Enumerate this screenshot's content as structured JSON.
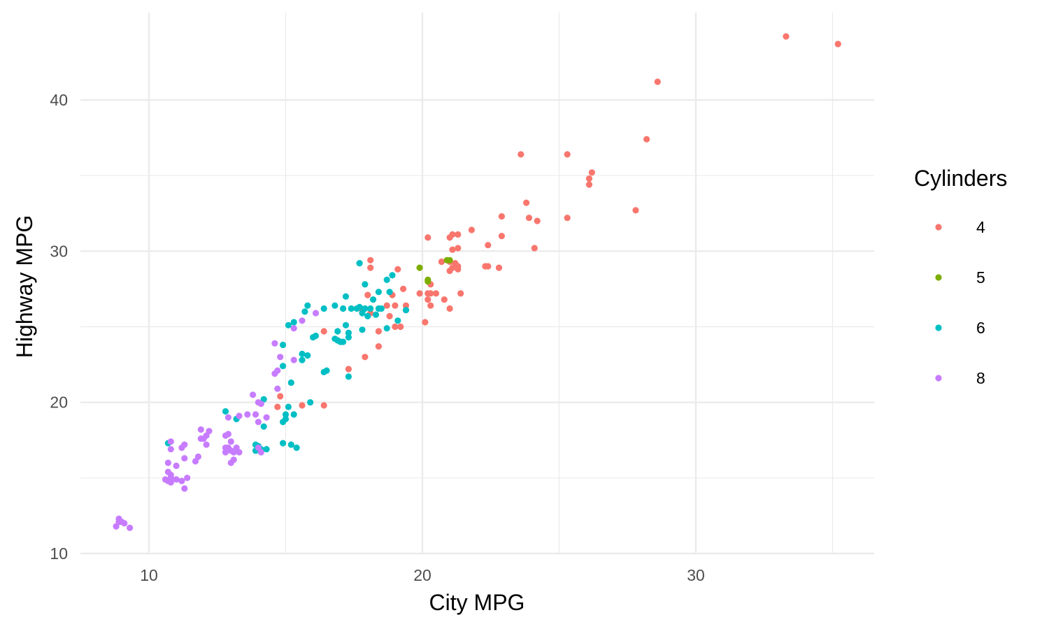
{
  "chart_data": {
    "type": "scatter",
    "xlabel": "City MPG",
    "ylabel": "Highway MPG",
    "xlim": [
      7.5,
      36.5
    ],
    "ylim": [
      10,
      45
    ],
    "xticks": [
      10,
      20,
      30
    ],
    "yticks": [
      10,
      20,
      30,
      40
    ],
    "grid": true,
    "legend": {
      "title": "Cylinders",
      "position": "right"
    },
    "series": [
      {
        "name": "4",
        "color": "#F8766D",
        "points": [
          [
            33.3,
            44.2
          ],
          [
            35.2,
            43.7
          ],
          [
            28.6,
            41.2
          ],
          [
            28.2,
            37.4
          ],
          [
            23.6,
            36.4
          ],
          [
            25.3,
            36.4
          ],
          [
            26.2,
            35.2
          ],
          [
            26.1,
            34.8
          ],
          [
            26.1,
            34.4
          ],
          [
            23.8,
            33.2
          ],
          [
            27.8,
            32.7
          ],
          [
            23.9,
            32.2
          ],
          [
            24.2,
            32.0
          ],
          [
            25.3,
            32.2
          ],
          [
            22.9,
            32.3
          ],
          [
            21.8,
            31.4
          ],
          [
            22.9,
            31.0
          ],
          [
            21.3,
            31.1
          ],
          [
            21.1,
            31.1
          ],
          [
            20.2,
            30.9
          ],
          [
            21.0,
            30.9
          ],
          [
            22.4,
            30.4
          ],
          [
            24.1,
            30.2
          ],
          [
            21.3,
            30.2
          ],
          [
            21.1,
            30.1
          ],
          [
            18.1,
            29.4
          ],
          [
            20.7,
            29.3
          ],
          [
            21.0,
            29.3
          ],
          [
            21.3,
            29.0
          ],
          [
            21.2,
            29.2
          ],
          [
            22.4,
            29.0
          ],
          [
            22.3,
            29.0
          ],
          [
            22.8,
            28.9
          ],
          [
            21.0,
            28.7
          ],
          [
            18.1,
            28.9
          ],
          [
            19.1,
            28.8
          ],
          [
            21.3,
            28.8
          ],
          [
            21.1,
            28.9
          ],
          [
            20.3,
            27.8
          ],
          [
            20.3,
            27.2
          ],
          [
            19.9,
            27.2
          ],
          [
            20.2,
            27.2
          ],
          [
            20.5,
            27.2
          ],
          [
            19.3,
            27.5
          ],
          [
            21.4,
            27.2
          ],
          [
            18.0,
            27.1
          ],
          [
            18.9,
            27.1
          ],
          [
            20.2,
            26.8
          ],
          [
            20.3,
            26.4
          ],
          [
            20.8,
            26.8
          ],
          [
            21.0,
            26.2
          ],
          [
            18.7,
            26.4
          ],
          [
            19.0,
            26.4
          ],
          [
            19.4,
            26.4
          ],
          [
            19.4,
            26.1
          ],
          [
            18.1,
            25.9
          ],
          [
            17.8,
            26.0
          ],
          [
            18.8,
            25.7
          ],
          [
            19.2,
            25.0
          ],
          [
            19.0,
            25.0
          ],
          [
            20.1,
            25.3
          ],
          [
            16.4,
            24.7
          ],
          [
            18.4,
            24.7
          ],
          [
            18.4,
            23.7
          ],
          [
            17.9,
            23.0
          ],
          [
            17.3,
            22.2
          ],
          [
            14.8,
            20.4
          ],
          [
            14.7,
            19.7
          ],
          [
            15.6,
            19.8
          ],
          [
            16.4,
            19.8
          ]
        ]
      },
      {
        "name": "5",
        "color": "#7CAE00",
        "points": [
          [
            19.9,
            28.9
          ],
          [
            20.9,
            29.4
          ],
          [
            21.0,
            29.4
          ],
          [
            20.2,
            28.1
          ],
          [
            20.2,
            28.0
          ]
        ]
      },
      {
        "name": "6",
        "color": "#00BFC4",
        "points": [
          [
            17.7,
            29.2
          ],
          [
            18.9,
            28.4
          ],
          [
            18.7,
            28.1
          ],
          [
            17.9,
            27.8
          ],
          [
            18.8,
            27.3
          ],
          [
            18.4,
            27.3
          ],
          [
            17.2,
            27.0
          ],
          [
            18.2,
            26.8
          ],
          [
            16.8,
            26.4
          ],
          [
            15.8,
            26.4
          ],
          [
            15.7,
            26.0
          ],
          [
            16.4,
            26.2
          ],
          [
            17.1,
            26.2
          ],
          [
            17.4,
            26.2
          ],
          [
            17.7,
            26.3
          ],
          [
            17.6,
            26.2
          ],
          [
            17.9,
            26.2
          ],
          [
            18.1,
            26.2
          ],
          [
            18.4,
            26.2
          ],
          [
            18.5,
            26.2
          ],
          [
            17.8,
            25.9
          ],
          [
            18.0,
            25.7
          ],
          [
            18.3,
            25.8
          ],
          [
            19.4,
            26.1
          ],
          [
            15.3,
            25.3
          ],
          [
            15.1,
            25.1
          ],
          [
            19.1,
            25.4
          ],
          [
            17.2,
            25.1
          ],
          [
            16.9,
            24.7
          ],
          [
            17.3,
            24.6
          ],
          [
            17.8,
            24.8
          ],
          [
            18.7,
            24.9
          ],
          [
            16.1,
            24.4
          ],
          [
            16.0,
            24.3
          ],
          [
            16.8,
            24.2
          ],
          [
            16.9,
            24.1
          ],
          [
            17.0,
            24.0
          ],
          [
            17.1,
            24.0
          ],
          [
            17.3,
            24.3
          ],
          [
            14.9,
            23.8
          ],
          [
            15.6,
            23.2
          ],
          [
            15.8,
            23.1
          ],
          [
            15.6,
            22.8
          ],
          [
            14.9,
            22.4
          ],
          [
            16.5,
            22.1
          ],
          [
            16.4,
            22.0
          ],
          [
            17.3,
            21.7
          ],
          [
            15.2,
            21.3
          ],
          [
            15.9,
            20.0
          ],
          [
            12.8,
            19.4
          ],
          [
            14.2,
            20.2
          ],
          [
            15.1,
            19.7
          ],
          [
            15.0,
            19.2
          ],
          [
            15.3,
            19.2
          ],
          [
            15.0,
            18.9
          ],
          [
            14.9,
            18.7
          ],
          [
            13.2,
            18.9
          ],
          [
            14.2,
            18.4
          ],
          [
            13.9,
            17.2
          ],
          [
            14.0,
            17.1
          ],
          [
            14.9,
            17.3
          ],
          [
            15.2,
            17.2
          ],
          [
            15.4,
            17.0
          ],
          [
            10.7,
            17.3
          ],
          [
            14.1,
            16.9
          ],
          [
            14.3,
            16.9
          ],
          [
            13.9,
            16.8
          ]
        ]
      },
      {
        "name": "8",
        "color": "#C77CFF",
        "points": [
          [
            16.1,
            25.9
          ],
          [
            15.6,
            25.4
          ],
          [
            15.3,
            24.9
          ],
          [
            14.6,
            23.9
          ],
          [
            14.8,
            23.0
          ],
          [
            15.3,
            22.8
          ],
          [
            14.7,
            22.1
          ],
          [
            14.6,
            21.9
          ],
          [
            14.7,
            20.9
          ],
          [
            13.8,
            20.5
          ],
          [
            14.0,
            20.0
          ],
          [
            14.1,
            19.9
          ],
          [
            13.6,
            19.2
          ],
          [
            13.3,
            19.1
          ],
          [
            13.9,
            19.2
          ],
          [
            14.3,
            19.0
          ],
          [
            12.9,
            19.0
          ],
          [
            14.0,
            18.7
          ],
          [
            11.9,
            18.2
          ],
          [
            12.2,
            18.1
          ],
          [
            12.1,
            17.8
          ],
          [
            11.9,
            17.6
          ],
          [
            12.0,
            17.6
          ],
          [
            12.8,
            17.8
          ],
          [
            12.9,
            17.9
          ],
          [
            10.8,
            17.4
          ],
          [
            13.0,
            17.4
          ],
          [
            11.3,
            17.2
          ],
          [
            11.2,
            17.0
          ],
          [
            12.1,
            17.2
          ],
          [
            12.8,
            17.0
          ],
          [
            12.9,
            17.0
          ],
          [
            13.2,
            17.0
          ],
          [
            14.0,
            17.0
          ],
          [
            13.0,
            16.8
          ],
          [
            13.1,
            16.7
          ],
          [
            13.3,
            16.7
          ],
          [
            12.8,
            16.7
          ],
          [
            14.1,
            16.7
          ],
          [
            10.8,
            16.9
          ],
          [
            11.8,
            16.4
          ],
          [
            13.1,
            16.2
          ],
          [
            11.3,
            16.3
          ],
          [
            13.0,
            16.0
          ],
          [
            10.7,
            16.0
          ],
          [
            11.7,
            16.1
          ],
          [
            11.0,
            15.8
          ],
          [
            10.7,
            15.4
          ],
          [
            10.8,
            15.2
          ],
          [
            10.8,
            15.0
          ],
          [
            11.4,
            15.0
          ],
          [
            11.0,
            14.9
          ],
          [
            10.7,
            14.8
          ],
          [
            10.8,
            14.7
          ],
          [
            11.2,
            14.8
          ],
          [
            11.3,
            14.3
          ],
          [
            10.6,
            14.9
          ],
          [
            8.9,
            12.3
          ],
          [
            8.9,
            12.1
          ],
          [
            9.0,
            12.1
          ],
          [
            9.1,
            12.0
          ],
          [
            8.8,
            11.8
          ],
          [
            9.3,
            11.7
          ]
        ]
      }
    ]
  }
}
